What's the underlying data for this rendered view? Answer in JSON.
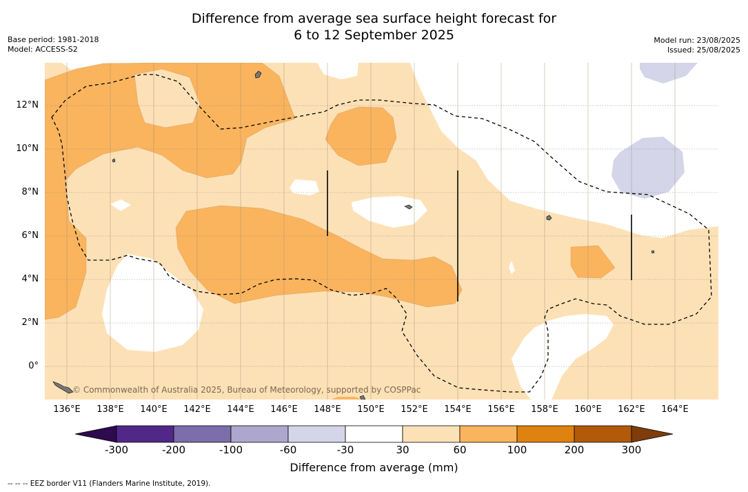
{
  "title_line1": "Difference from average sea surface height forecast for",
  "title_line2": "6 to 12 September 2025",
  "base_period": "Base period: 1981-2018",
  "model": "Model: ACCESS-S2",
  "model_run": "Model run: 23/08/2025",
  "issued": "Issued: 25/08/2025",
  "credit": "© Commonwealth of Australia 2025, Bureau of Meteorology, supported by COSPPac",
  "footnote": "--  --  -- EEZ border V11 (Flanders Marine Institute, 2019).",
  "latitude_ticks": [
    "12°N",
    "10°N",
    "8°N",
    "6°N",
    "4°N",
    "2°N",
    "0°"
  ],
  "longitude_ticks": [
    "136°E",
    "138°E",
    "140°E",
    "142°E",
    "144°E",
    "146°E",
    "148°E",
    "150°E",
    "152°E",
    "154°E",
    "156°E",
    "158°E",
    "160°E",
    "162°E",
    "164°E"
  ],
  "colorbar": {
    "title": "Difference from average (mm)",
    "labels": [
      "-300",
      "-200",
      "-100",
      "-60",
      "-30",
      "30",
      "60",
      "100",
      "200",
      "300"
    ],
    "colors": [
      "#512888",
      "#7c6dab",
      "#aea7cd",
      "#d4d5e8",
      "#ffffff",
      "#fde1b6",
      "#fab45e",
      "#e0820f",
      "#b05a0a"
    ],
    "under_color": "#2e0a4e",
    "over_color": "#7e3d0a"
  }
}
